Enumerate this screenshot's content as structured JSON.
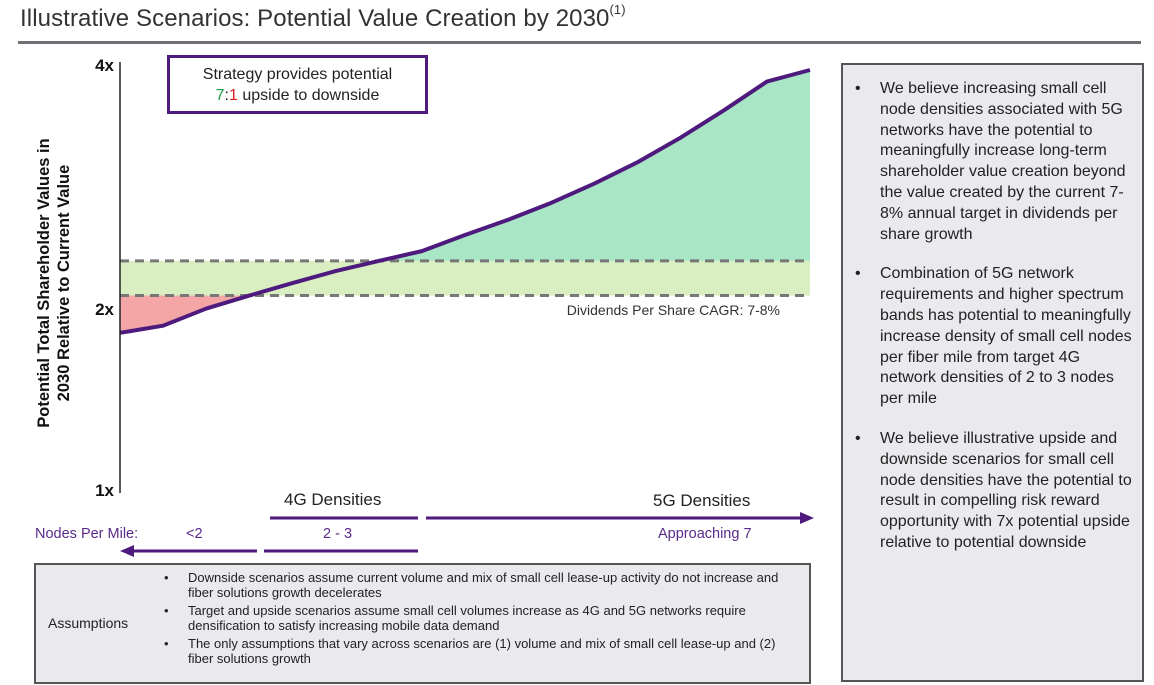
{
  "title": "Illustrative Scenarios: Potential Value Creation by 2030",
  "title_sup": "(1)",
  "callout": {
    "line1": "Strategy provides potential",
    "ratio_up": "7",
    "ratio_sep": ":",
    "ratio_down": "1",
    "line2_rest": " upside to downside"
  },
  "chart_data": {
    "type": "area",
    "ylabel_line1": "Potential Total Shareholder Values in",
    "ylabel_line2": "2030 Relative to Current Value",
    "yticks": [
      "4x",
      "2x",
      "1x"
    ],
    "y_scale": "log",
    "ylim": [
      1,
      4
    ],
    "x": [
      0,
      1,
      2,
      3,
      4,
      5,
      6,
      7,
      8,
      9,
      10,
      11,
      12,
      13,
      14,
      15,
      16
    ],
    "value_line": [
      1.68,
      1.72,
      1.82,
      1.9,
      1.98,
      2.06,
      2.13,
      2.2,
      2.32,
      2.44,
      2.58,
      2.75,
      2.95,
      3.2,
      3.5,
      3.85,
      4.0
    ],
    "band": {
      "label": "Dividends Per Share CAGR: 7-8%",
      "low": 1.9,
      "high": 2.13
    },
    "colors": {
      "line": "#4e1a7d",
      "upside": "#a8e6c6",
      "downside": "#f4a6a6",
      "band": "#d9efc2",
      "band_dash": "#777777"
    },
    "densities": {
      "four_g": "4G Densities",
      "five_g": "5G Densities"
    },
    "nodes": {
      "label": "Nodes Per Mile:",
      "lt2": "<2",
      "range": "2 - 3",
      "approach": "Approaching 7"
    }
  },
  "assumptions": {
    "title": "Assumptions",
    "items": [
      "Downside scenarios assume current volume and mix of small cell lease-up activity do not increase and fiber solutions growth decelerates",
      "Target and upside scenarios assume small cell volumes increase as 4G and 5G networks require densification to satisfy increasing mobile data demand",
      "The only assumptions that vary across scenarios are (1) volume and mix of small cell lease-up and (2) fiber solutions growth"
    ]
  },
  "sidebar": {
    "items": [
      "We believe increasing small cell node densities associated with 5G networks have the potential to meaningfully increase long-term shareholder value creation beyond the value created by the current 7-8% annual target in dividends per share growth",
      "Combination of 5G network requirements and higher spectrum bands has potential to meaningfully increase density of small cell nodes per fiber mile from target 4G network densities of 2 to 3 nodes per mile",
      "We believe illustrative upside and downside scenarios for small cell node densities have the potential to result in compelling risk reward opportunity with 7x potential upside relative to potential downside"
    ]
  }
}
